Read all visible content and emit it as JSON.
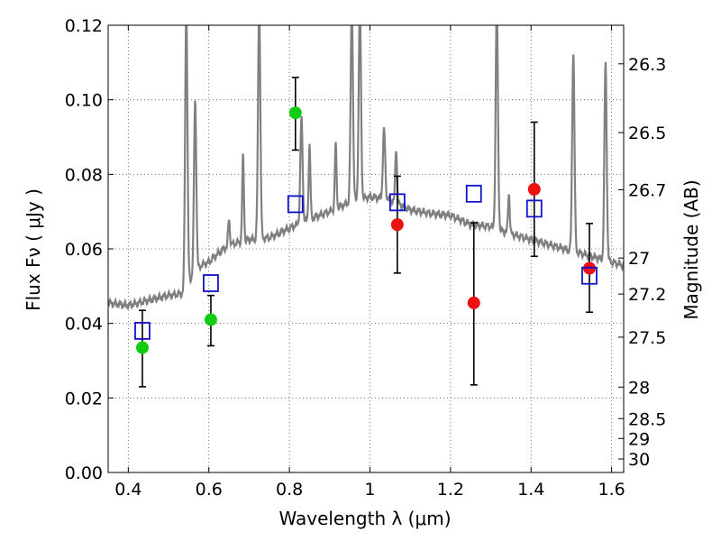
{
  "chart_data": {
    "type": "scatter",
    "xlabel": "Wavelength  λ (μm)",
    "ylabel": "Flux  Fν  ( μJy )",
    "ylabel_right": "Magnitude (AB)",
    "xlim": [
      0.35,
      1.63
    ],
    "ylim": [
      0.0,
      0.12
    ],
    "grid": true,
    "x_ticks": [
      0.4,
      0.6,
      0.8,
      1.0,
      1.2,
      1.4,
      1.6
    ],
    "x_tick_labels": [
      "0.4",
      "0.6",
      "0.8",
      "1",
      "1.2",
      "1.4",
      "1.6"
    ],
    "y_ticks": [
      0.0,
      0.02,
      0.04,
      0.06,
      0.08,
      0.1,
      0.12
    ],
    "y_tick_labels": [
      "0.00",
      "0.02",
      "0.04",
      "0.06",
      "0.08",
      "0.10",
      "0.12"
    ],
    "right_ticks": [
      {
        "mag": 26.3,
        "label": "26.3"
      },
      {
        "mag": 26.5,
        "label": "26.5"
      },
      {
        "mag": 26.7,
        "label": "26.7"
      },
      {
        "mag": 27.0,
        "label": "27"
      },
      {
        "mag": 27.2,
        "label": "27.2"
      },
      {
        "mag": 27.5,
        "label": "27.5"
      },
      {
        "mag": 28.0,
        "label": "28"
      },
      {
        "mag": 28.5,
        "label": "28.5"
      },
      {
        "mag": 29.0,
        "label": "29"
      },
      {
        "mag": 30.0,
        "label": "30"
      }
    ],
    "colors": {
      "spectrum": "#808080",
      "green": "#11cc11",
      "red": "#ee1111",
      "model": "#1111cc",
      "errorbar": "#000000",
      "grid": "#555555"
    },
    "series": [
      {
        "name": "model template spectrum",
        "kind": "line",
        "baseline": [
          [
            0.35,
            0.0455
          ],
          [
            0.4,
            0.0448
          ],
          [
            0.45,
            0.0462
          ],
          [
            0.5,
            0.0475
          ],
          [
            0.535,
            0.048
          ],
          [
            0.545,
            0.051
          ],
          [
            0.56,
            0.0525
          ],
          [
            0.58,
            0.0555
          ],
          [
            0.6,
            0.0565
          ],
          [
            0.62,
            0.0585
          ],
          [
            0.65,
            0.061
          ],
          [
            0.7,
            0.0625
          ],
          [
            0.75,
            0.063
          ],
          [
            0.8,
            0.0655
          ],
          [
            0.85,
            0.068
          ],
          [
            0.9,
            0.07
          ],
          [
            0.95,
            0.0725
          ],
          [
            1.0,
            0.074
          ],
          [
            1.05,
            0.0732
          ],
          [
            1.1,
            0.0705
          ],
          [
            1.15,
            0.0695
          ],
          [
            1.2,
            0.069
          ],
          [
            1.25,
            0.0665
          ],
          [
            1.3,
            0.066
          ],
          [
            1.35,
            0.064
          ],
          [
            1.4,
            0.0625
          ],
          [
            1.45,
            0.061
          ],
          [
            1.5,
            0.0595
          ],
          [
            1.55,
            0.058
          ],
          [
            1.6,
            0.0565
          ],
          [
            1.63,
            0.0555
          ]
        ],
        "emission_lines": [
          {
            "x": 0.544,
            "peak": 0.125,
            "w": 0.004
          },
          {
            "x": 0.566,
            "peak": 0.1,
            "w": 0.004
          },
          {
            "x": 0.65,
            "peak": 0.068,
            "w": 0.003
          },
          {
            "x": 0.685,
            "peak": 0.085,
            "w": 0.003
          },
          {
            "x": 0.725,
            "peak": 0.125,
            "w": 0.004
          },
          {
            "x": 0.83,
            "peak": 0.095,
            "w": 0.004
          },
          {
            "x": 0.85,
            "peak": 0.088,
            "w": 0.003
          },
          {
            "x": 0.915,
            "peak": 0.088,
            "w": 0.003
          },
          {
            "x": 0.955,
            "peak": 0.125,
            "w": 0.004
          },
          {
            "x": 0.975,
            "peak": 0.125,
            "w": 0.004
          },
          {
            "x": 1.035,
            "peak": 0.092,
            "w": 0.004
          },
          {
            "x": 1.065,
            "peak": 0.087,
            "w": 0.003
          },
          {
            "x": 1.315,
            "peak": 0.125,
            "w": 0.004
          },
          {
            "x": 1.345,
            "peak": 0.075,
            "w": 0.003
          },
          {
            "x": 1.505,
            "peak": 0.113,
            "w": 0.004
          },
          {
            "x": 1.585,
            "peak": 0.11,
            "w": 0.004
          }
        ]
      },
      {
        "name": "green observed",
        "kind": "marker",
        "marker": "circle",
        "color": "green",
        "points": [
          {
            "x": 0.435,
            "y": 0.0335,
            "err_low": 0.023,
            "err_high": 0.0435
          },
          {
            "x": 0.605,
            "y": 0.041,
            "err_low": 0.034,
            "err_high": 0.0475
          },
          {
            "x": 0.815,
            "y": 0.0965,
            "err_low": 0.0865,
            "err_high": 0.106
          }
        ]
      },
      {
        "name": "red observed",
        "kind": "marker",
        "marker": "circle",
        "color": "red",
        "points": [
          {
            "x": 1.068,
            "y": 0.0665,
            "err_low": 0.0535,
            "err_high": 0.0795
          },
          {
            "x": 1.258,
            "y": 0.0455,
            "err_low": 0.0235,
            "err_high": 0.067
          },
          {
            "x": 1.408,
            "y": 0.076,
            "err_low": 0.058,
            "err_high": 0.094
          },
          {
            "x": 1.545,
            "y": 0.0548,
            "err_low": 0.043,
            "err_high": 0.0668
          }
        ]
      },
      {
        "name": "model photometry",
        "kind": "marker",
        "marker": "open-square",
        "color": "model",
        "points": [
          {
            "x": 0.435,
            "y": 0.038
          },
          {
            "x": 0.605,
            "y": 0.0508
          },
          {
            "x": 0.815,
            "y": 0.072
          },
          {
            "x": 1.068,
            "y": 0.0725
          },
          {
            "x": 1.258,
            "y": 0.0748
          },
          {
            "x": 1.408,
            "y": 0.0708
          },
          {
            "x": 1.545,
            "y": 0.0528
          }
        ]
      }
    ]
  }
}
